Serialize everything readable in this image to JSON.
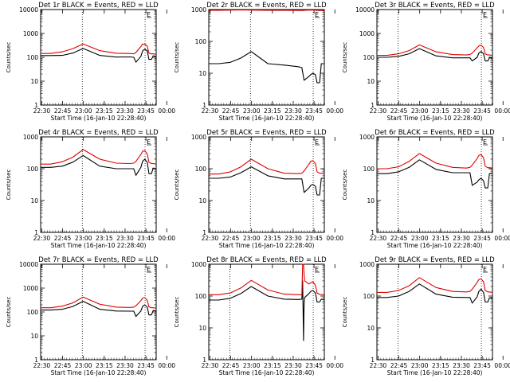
{
  "colors": {
    "background": "#ffffff",
    "axes": "#000000",
    "events": "#000000",
    "lld": "#e00000"
  },
  "chart_data": [
    {
      "type": "line",
      "panel": "1",
      "title": "Det 1r BLACK = Events, RED = LLD",
      "xlabel": "Start Time (16-Jan-10 22:28:40)",
      "ylabel": "Counts/sec",
      "xticks": [
        "22:30",
        "22:45",
        "23:00",
        "23:15",
        "23:30",
        "23:45",
        "00:00"
      ],
      "xlim": [
        -0.4,
        41.2
      ],
      "ylim": [
        1,
        10000
      ],
      "yscale": "log",
      "yticks": [
        "1",
        "10",
        "100",
        "1000",
        "10000"
      ],
      "vlines": [
        14.6,
        37.2
      ],
      "marker": "E",
      "x": [
        -0.4,
        3.2,
        7.4,
        11.2,
        14.9,
        20.9,
        26.8,
        31.8,
        33.1,
        33.9,
        35.7,
        36.3,
        37.1,
        38.0,
        38.6,
        39.5,
        40.1,
        41.2
      ],
      "series": [
        {
          "name": "Events",
          "color": "#000000",
          "values": [
            118,
            118,
            120,
            150,
            235,
            120,
            102,
            104,
            100,
            62,
            110,
            185,
            220,
            185,
            82,
            82,
            115,
            110
          ]
        },
        {
          "name": "LLD",
          "color": "#e00000",
          "values": [
            145,
            145,
            170,
            230,
            360,
            190,
            148,
            143,
            140,
            160,
            285,
            355,
            360,
            290,
            150,
            138,
            140,
            133
          ]
        }
      ]
    },
    {
      "type": "line",
      "panel": "2",
      "title": "Det 2r BLACK = Events, RED = LLD",
      "xlabel": "Start Time (16-Jan-10 22:28:40)",
      "ylabel": "Counts/sec",
      "xticks": [
        "22:30",
        "22:45",
        "23:00",
        "23:15",
        "23:30",
        "23:45",
        "00:00"
      ],
      "xlim": [
        -0.4,
        41.2
      ],
      "ylim": [
        1,
        1000
      ],
      "yscale": "log",
      "yticks": [
        "1",
        "10",
        "100",
        "1000"
      ],
      "vlines": [
        14.6,
        37.2
      ],
      "marker": "E",
      "x": [
        -0.4,
        3.2,
        7.4,
        11.2,
        14.9,
        20.9,
        26.8,
        31.8,
        33.1,
        33.9,
        35.7,
        36.3,
        37.1,
        38.0,
        38.6,
        39.5,
        40.1,
        41.2
      ],
      "series": [
        {
          "name": "Events",
          "color": "#000000",
          "values": [
            20,
            20,
            22,
            30,
            48,
            20,
            18,
            16,
            15,
            6,
            8,
            9,
            10,
            9,
            5,
            5,
            20,
            20
          ]
        },
        {
          "name": "LLD",
          "color": "#e00000",
          "values": [
            950,
            950,
            960,
            970,
            960,
            950,
            950,
            940,
            930,
            950,
            960,
            960,
            960,
            955,
            940,
            935,
            935,
            930
          ]
        }
      ]
    },
    {
      "type": "line",
      "panel": "3",
      "title": "Det 3r BLACK = Events, RED = LLD",
      "xlabel": "Start Time (16-Jan-10 22:28:40)",
      "ylabel": "Counts/sec",
      "xticks": [
        "22:30",
        "22:45",
        "23:00",
        "23:15",
        "23:30",
        "23:45",
        "00:00"
      ],
      "xlim": [
        -0.4,
        41.2
      ],
      "ylim": [
        1,
        10000
      ],
      "yscale": "log",
      "yticks": [
        "1",
        "10",
        "100",
        "1000",
        "10000"
      ],
      "vlines": [
        7.2,
        37.2
      ],
      "marker": "E",
      "x": [
        -0.4,
        3.2,
        7.4,
        11.2,
        14.9,
        20.9,
        26.8,
        31.8,
        33.1,
        33.9,
        35.7,
        36.3,
        37.1,
        38.0,
        38.6,
        39.5,
        40.1,
        41.2
      ],
      "series": [
        {
          "name": "Events",
          "color": "#000000",
          "values": [
            100,
            100,
            110,
            140,
            230,
            115,
            95,
            95,
            95,
            70,
            100,
            150,
            175,
            140,
            70,
            70,
            95,
            95
          ]
        },
        {
          "name": "LLD",
          "color": "#e00000",
          "values": [
            120,
            120,
            140,
            190,
            330,
            170,
            130,
            125,
            130,
            150,
            250,
            300,
            320,
            260,
            140,
            125,
            125,
            120
          ]
        }
      ]
    },
    {
      "type": "line",
      "panel": "4",
      "title": "Det 4r BLACK = Events, RED = LLD",
      "xlabel": "Start Time (16-Jan-10 22:28:40)",
      "ylabel": "Counts/sec",
      "xticks": [
        "22:30",
        "22:45",
        "23:00",
        "23:15",
        "23:30",
        "23:45",
        "00:00"
      ],
      "xlim": [
        -0.4,
        41.2
      ],
      "ylim": [
        1,
        1000
      ],
      "yscale": "log",
      "yticks": [
        "1",
        "10",
        "100",
        "1000"
      ],
      "vlines": [
        14.6,
        37.2
      ],
      "marker": "E",
      "x": [
        -0.4,
        3.2,
        7.4,
        11.2,
        14.9,
        20.9,
        26.8,
        31.8,
        33.1,
        33.9,
        35.7,
        36.3,
        37.1,
        38.0,
        38.6,
        39.5,
        40.1,
        41.2
      ],
      "series": [
        {
          "name": "Events",
          "color": "#000000",
          "values": [
            110,
            110,
            120,
            160,
            260,
            120,
            100,
            100,
            100,
            62,
            110,
            170,
            200,
            160,
            70,
            70,
            105,
            100
          ]
        },
        {
          "name": "LLD",
          "color": "#e00000",
          "values": [
            140,
            140,
            165,
            230,
            400,
            200,
            150,
            145,
            150,
            170,
            280,
            350,
            370,
            290,
            160,
            145,
            145,
            140
          ]
        }
      ]
    },
    {
      "type": "line",
      "panel": "5",
      "title": "Det 5r BLACK = Events, RED = LLD",
      "xlabel": "Start Time (16-Jan-10 22:28:40)",
      "ylabel": "Counts/sec",
      "xticks": [
        "22:30",
        "22:45",
        "23:00",
        "23:15",
        "23:30",
        "23:45",
        "00:00"
      ],
      "xlim": [
        -0.4,
        41.2
      ],
      "ylim": [
        1,
        1000
      ],
      "yscale": "log",
      "yticks": [
        "1",
        "10",
        "100",
        "1000"
      ],
      "vlines": [
        14.6,
        37.2
      ],
      "marker": "E",
      "x": [
        -0.4,
        3.2,
        7.4,
        11.2,
        14.9,
        20.9,
        26.8,
        31.8,
        33.1,
        33.9,
        35.7,
        36.3,
        37.1,
        38.0,
        38.6,
        39.5,
        40.1,
        41.2
      ],
      "series": [
        {
          "name": "Events",
          "color": "#000000",
          "values": [
            50,
            50,
            55,
            75,
            115,
            60,
            48,
            48,
            48,
            18,
            25,
            30,
            32,
            28,
            15,
            15,
            50,
            50
          ]
        },
        {
          "name": "LLD",
          "color": "#e00000",
          "values": [
            68,
            68,
            80,
            115,
            200,
            100,
            72,
            70,
            72,
            85,
            140,
            170,
            180,
            145,
            80,
            72,
            72,
            70
          ]
        }
      ]
    },
    {
      "type": "line",
      "panel": "6",
      "title": "Det 6r BLACK = Events, RED = LLD",
      "xlabel": "Start Time (16-Jan-10 22:28:40)",
      "ylabel": "Counts/sec",
      "xticks": [
        "22:30",
        "22:45",
        "23:00",
        "23:15",
        "23:30",
        "23:45",
        "00:00"
      ],
      "xlim": [
        -0.4,
        41.2
      ],
      "ylim": [
        1,
        1000
      ],
      "yscale": "log",
      "yticks": [
        "1",
        "10",
        "100",
        "1000"
      ],
      "vlines": [
        7.2,
        37.2
      ],
      "marker": "E",
      "x": [
        -0.4,
        3.2,
        7.4,
        11.2,
        14.9,
        20.9,
        26.8,
        31.8,
        33.1,
        33.9,
        35.7,
        36.3,
        37.1,
        38.0,
        38.6,
        39.5,
        40.1,
        41.2
      ],
      "series": [
        {
          "name": "Events",
          "color": "#000000",
          "values": [
            70,
            70,
            80,
            110,
            190,
            95,
            75,
            75,
            75,
            30,
            38,
            45,
            50,
            42,
            25,
            25,
            70,
            70
          ]
        },
        {
          "name": "LLD",
          "color": "#e00000",
          "values": [
            100,
            100,
            115,
            170,
            300,
            150,
            110,
            105,
            110,
            130,
            210,
            260,
            280,
            220,
            120,
            108,
            108,
            105
          ]
        }
      ]
    },
    {
      "type": "line",
      "panel": "7",
      "title": "Det 7r BLACK = Events, RED = LLD",
      "xlabel": "Start Time (16-Jan-10 22:28:40)",
      "ylabel": "Counts/sec",
      "xticks": [
        "22:30",
        "22:45",
        "23:00",
        "23:15",
        "23:30",
        "23:45",
        "00:00"
      ],
      "xlim": [
        -0.4,
        41.2
      ],
      "ylim": [
        1,
        10000
      ],
      "yscale": "log",
      "yticks": [
        "1",
        "10",
        "100",
        "1000",
        "10000"
      ],
      "vlines": [
        14.6,
        37.2
      ],
      "marker": "E",
      "x": [
        -0.4,
        3.2,
        7.4,
        11.2,
        14.9,
        20.9,
        26.8,
        31.8,
        33.1,
        33.9,
        35.7,
        36.3,
        37.1,
        38.0,
        38.6,
        39.5,
        40.1,
        41.2
      ],
      "series": [
        {
          "name": "Events",
          "color": "#000000",
          "values": [
            120,
            120,
            130,
            170,
            280,
            130,
            110,
            108,
            108,
            65,
            110,
            170,
            200,
            160,
            75,
            75,
            115,
            110
          ]
        },
        {
          "name": "LLD",
          "color": "#e00000",
          "values": [
            150,
            150,
            175,
            240,
            420,
            210,
            160,
            155,
            160,
            180,
            300,
            380,
            400,
            310,
            165,
            150,
            150,
            145
          ]
        }
      ]
    },
    {
      "type": "line",
      "panel": "8",
      "title": "Det 8r BLACK = Events, RED = LLD",
      "xlabel": "Start Time (16-Jan-10 22:28:40)",
      "ylabel": "Counts/sec",
      "xticks": [
        "22:30",
        "22:45",
        "23:00",
        "23:15",
        "23:30",
        "23:45",
        "00:00"
      ],
      "xlim": [
        -0.4,
        41.2
      ],
      "ylim": [
        1,
        1000
      ],
      "yscale": "log",
      "yticks": [
        "1",
        "10",
        "100",
        "1000"
      ],
      "vlines": [
        7.2,
        37.2
      ],
      "marker": "E",
      "x": [
        -0.4,
        3.2,
        7.4,
        11.2,
        14.9,
        20.9,
        26.8,
        31.8,
        33.1,
        33.4,
        33.7,
        33.9,
        34.1,
        35.7,
        36.3,
        37.1,
        38.0,
        38.6,
        39.5,
        40.1,
        41.2
      ],
      "series": [
        {
          "name": "Events",
          "color": "#000000",
          "values": [
            75,
            75,
            85,
            120,
            200,
            100,
            80,
            78,
            80,
            300,
            4,
            60,
            90,
            120,
            140,
            150,
            125,
            65,
            65,
            80,
            78
          ]
        },
        {
          "name": "LLD",
          "color": "#e00000",
          "values": [
            110,
            110,
            125,
            180,
            310,
            155,
            115,
            110,
            110,
            1000,
            1000,
            500,
            300,
            240,
            260,
            280,
            220,
            125,
            112,
            112,
            110
          ]
        }
      ]
    },
    {
      "type": "line",
      "panel": "9",
      "title": "Det 9r BLACK = Events, RED = LLD",
      "xlabel": "Start Time (16-Jan-10 22:28:40)",
      "ylabel": "Counts/sec",
      "xticks": [
        "22:30",
        "22:45",
        "23:00",
        "23:15",
        "23:30",
        "23:45",
        "00:00"
      ],
      "xlim": [
        -0.4,
        41.2
      ],
      "ylim": [
        1,
        1000
      ],
      "yscale": "log",
      "yticks": [
        "1",
        "10",
        "100",
        "1000"
      ],
      "vlines": [
        7.2,
        37.2
      ],
      "marker": "E",
      "x": [
        -0.4,
        3.2,
        7.4,
        11.2,
        14.9,
        20.9,
        26.8,
        31.8,
        33.1,
        33.9,
        35.7,
        36.3,
        37.1,
        38.0,
        38.6,
        39.5,
        40.1,
        41.2
      ],
      "series": [
        {
          "name": "Events",
          "color": "#000000",
          "values": [
            90,
            90,
            100,
            140,
            240,
            115,
            92,
            90,
            90,
            60,
            95,
            140,
            165,
            130,
            65,
            65,
            88,
            85
          ]
        },
        {
          "name": "LLD",
          "color": "#e00000",
          "values": [
            130,
            130,
            150,
            210,
            380,
            185,
            140,
            135,
            140,
            165,
            270,
            330,
            350,
            280,
            150,
            135,
            135,
            130
          ]
        }
      ]
    }
  ]
}
